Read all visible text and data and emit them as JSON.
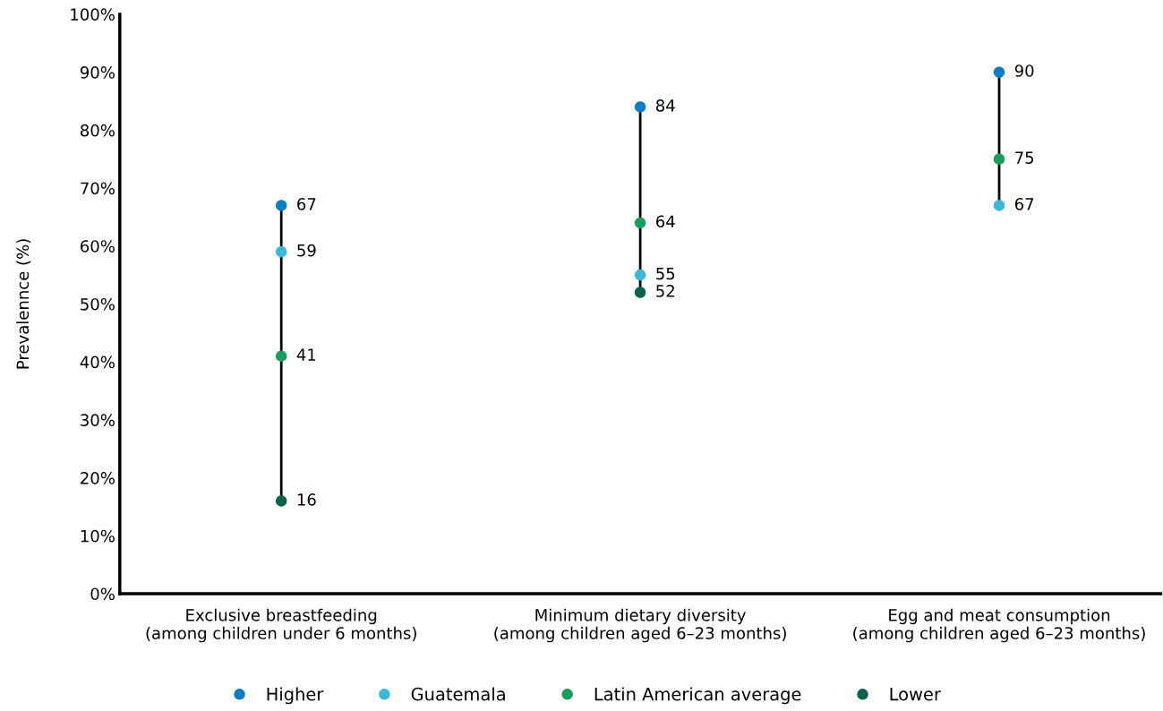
{
  "chart_data": {
    "type": "scatter",
    "ylabel": "Prevalennce (%)",
    "categories": [
      "Exclusive breastfeeding\n(among children under 6 months)",
      "Minimum dietary diversity\n(among children aged 6–23 months)",
      "Egg and meat consumption\n(among children aged 6–23 months)"
    ],
    "series": [
      {
        "name": "Higher",
        "color": "#0b7dc3",
        "values": [
          67,
          84,
          90
        ]
      },
      {
        "name": "Guatemala",
        "color": "#3bb8d9",
        "values": [
          59,
          55,
          67
        ]
      },
      {
        "name": "Latin American average",
        "color": "#1a9e5a",
        "values": [
          41,
          64,
          75
        ]
      },
      {
        "name": "Lower",
        "color": "#0a6150",
        "values": [
          16,
          52,
          null
        ]
      }
    ],
    "ylim": [
      0,
      100
    ],
    "yticks": [
      {
        "value": 0,
        "label": "0%"
      },
      {
        "value": 10,
        "label": "10%"
      },
      {
        "value": 20,
        "label": "20%"
      },
      {
        "value": 30,
        "label": "30%"
      },
      {
        "value": 40,
        "label": "40%"
      },
      {
        "value": 50,
        "label": "50%"
      },
      {
        "value": 60,
        "label": "60%"
      },
      {
        "value": 70,
        "label": "70%"
      },
      {
        "value": 80,
        "label": "80%"
      },
      {
        "value": 90,
        "label": "90%"
      },
      {
        "value": 100,
        "label": "100%"
      }
    ],
    "data_labels": true,
    "legend": "bottom",
    "grid": false,
    "marker": "circle"
  }
}
